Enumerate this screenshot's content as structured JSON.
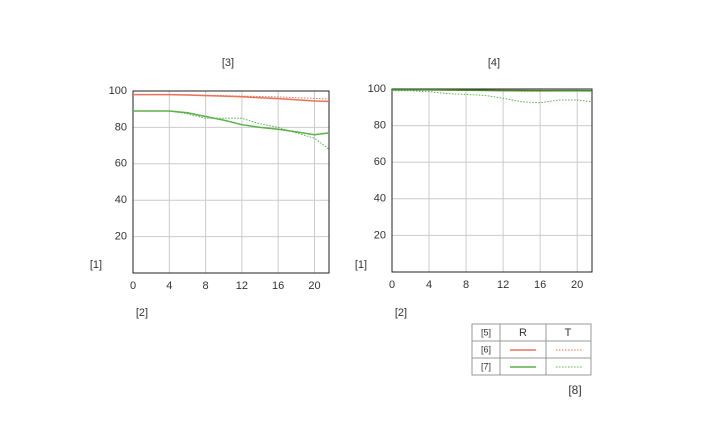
{
  "chart_data": [
    {
      "type": "line",
      "title": "[3]",
      "y_label": "[1]",
      "x_label": "[2]",
      "x": [
        0,
        2,
        4,
        6,
        8,
        10,
        12,
        14,
        16,
        18,
        20,
        21.6
      ],
      "xlim": [
        0,
        21.6
      ],
      "xticks": [
        0,
        4,
        8,
        12,
        16,
        20
      ],
      "ylim": [
        0,
        100
      ],
      "yticks": [
        20,
        40,
        60,
        80,
        100
      ],
      "grid": true,
      "series": [
        {
          "color": "#e8735a",
          "dash": "solid",
          "values": [
            98,
            98,
            98,
            97.8,
            97.5,
            97.2,
            96.8,
            96.3,
            95.8,
            95.2,
            94.5,
            94.3
          ]
        },
        {
          "color": "#e8735a",
          "dash": "dotted",
          "values": [
            98,
            98,
            98,
            97.9,
            97.7,
            97.5,
            97.2,
            97,
            96.7,
            96.3,
            96,
            95.6
          ]
        },
        {
          "color": "#5ab04a",
          "dash": "solid",
          "values": [
            89,
            89,
            89,
            88,
            86,
            84,
            81.5,
            80,
            79,
            77.5,
            76,
            77
          ]
        },
        {
          "color": "#5ab04a",
          "dash": "dotted",
          "values": [
            89,
            89,
            89,
            87.5,
            85,
            85,
            85,
            82,
            80,
            77,
            74,
            68
          ]
        }
      ]
    },
    {
      "type": "line",
      "title": "[4]",
      "y_label": "[1]",
      "x_label": "[2]",
      "x": [
        0,
        2,
        4,
        6,
        8,
        10,
        12,
        14,
        16,
        18,
        20,
        21.6
      ],
      "xlim": [
        0,
        21.6
      ],
      "xticks": [
        0,
        4,
        8,
        12,
        16,
        20
      ],
      "ylim": [
        0,
        100
      ],
      "yticks": [
        20,
        40,
        60,
        80,
        100
      ],
      "grid": true,
      "series": [
        {
          "color": "#e8735a",
          "dash": "solid",
          "values": [
            99.5,
            99.5,
            99.5,
            99.4,
            99.3,
            99.2,
            99.1,
            99,
            99,
            99,
            99,
            99
          ]
        },
        {
          "color": "#e8735a",
          "dash": "dotted",
          "values": [
            99.5,
            99.5,
            99.5,
            99.4,
            99.3,
            99.2,
            99,
            98.8,
            98.8,
            98.9,
            99,
            99
          ]
        },
        {
          "color": "#3a8a2a",
          "dash": "solid",
          "values": [
            99.6,
            99.6,
            99.6,
            99.5,
            99.4,
            99.3,
            99.2,
            99.2,
            99.1,
            99.1,
            99.1,
            99
          ]
        },
        {
          "color": "#5ab04a",
          "dash": "dotted",
          "values": [
            99,
            99,
            98.5,
            97.5,
            97,
            96.5,
            95,
            93,
            92.5,
            94,
            94,
            93
          ]
        }
      ]
    }
  ],
  "legend": {
    "header": [
      "[5]",
      "R",
      "T"
    ],
    "rows": [
      "[6]",
      "[7]"
    ],
    "note": "[8]"
  }
}
